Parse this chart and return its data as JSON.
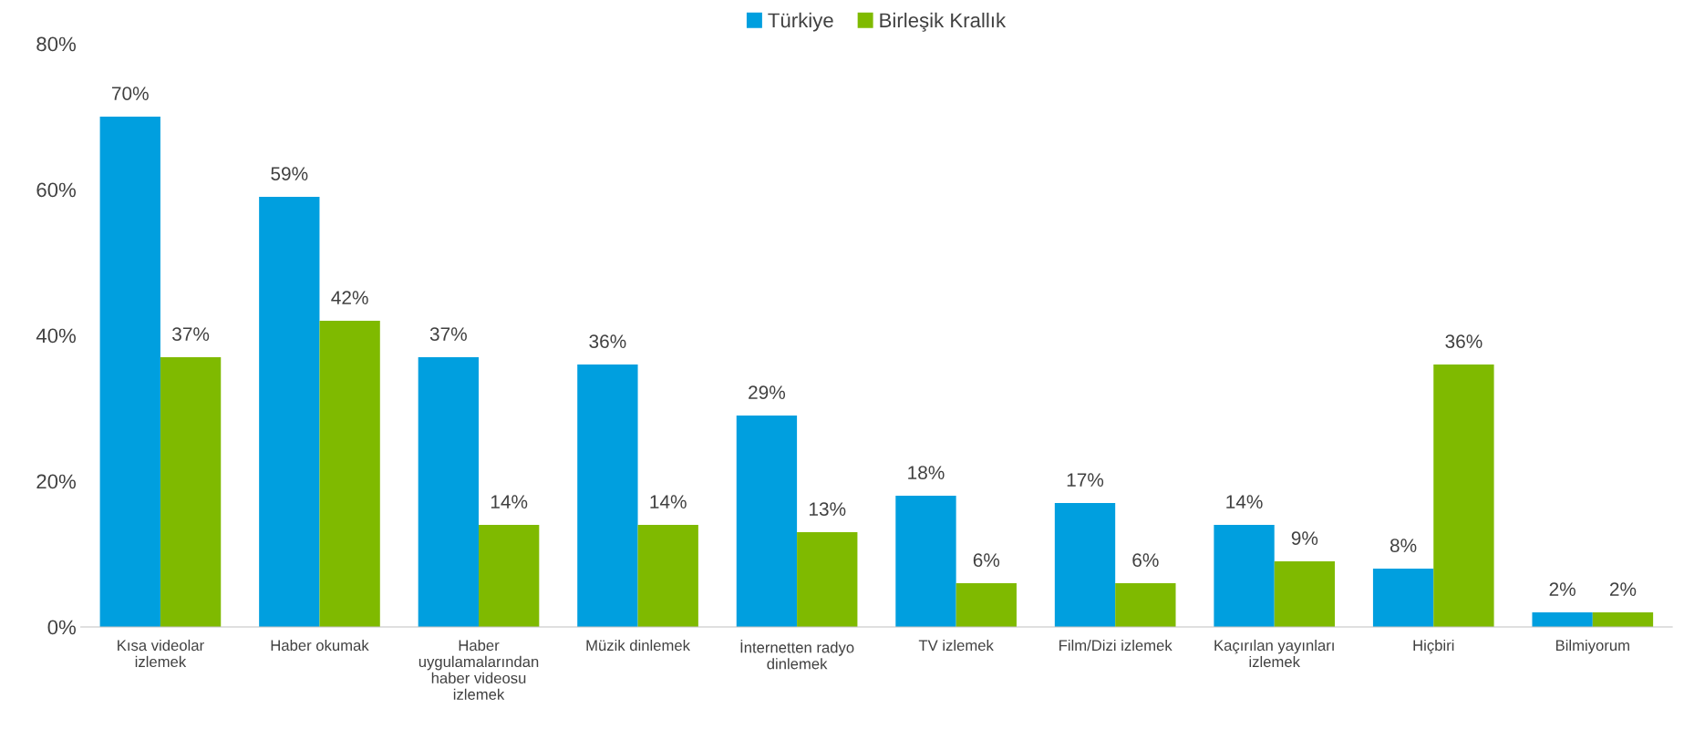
{
  "chart_data": {
    "type": "bar",
    "categories": [
      "Kısa videolar\nizlemek",
      "Haber okumak",
      "Haber\nuygulamalarından\nhaber videosu\nizlemek",
      "Müzik dinlemek",
      "İnternetten radyo\ndinlemek",
      "TV izlemek",
      "Film/Dizi izlemek",
      "Kaçırılan yayınları\nizlemek",
      "Hiçbiri",
      "Bilmiyorum"
    ],
    "series": [
      {
        "name": "Türkiye",
        "color": "#009fdf",
        "values": [
          70,
          59,
          37,
          36,
          29,
          18,
          17,
          14,
          8,
          2
        ],
        "value_labels": [
          "70%",
          "59%",
          "37%",
          "36%",
          "29%",
          "18%",
          "17%",
          "14%",
          "8%",
          "2%"
        ]
      },
      {
        "name": "Birleşik Krallık",
        "color": "#7fba00",
        "values": [
          37,
          42,
          14,
          14,
          13,
          6,
          6,
          9,
          36,
          2
        ],
        "value_labels": [
          "37%",
          "42%",
          "14%",
          "14%",
          "13%",
          "6%",
          "6%",
          "9%",
          "36%",
          "2%"
        ]
      }
    ],
    "ylim": [
      0,
      80
    ],
    "yticks": [
      {
        "value": 0,
        "label": "0%"
      },
      {
        "value": 20,
        "label": "20%"
      },
      {
        "value": 40,
        "label": "40%"
      },
      {
        "value": 60,
        "label": "60%"
      },
      {
        "value": 80,
        "label": "80%"
      }
    ],
    "grid": false,
    "legend": "top"
  }
}
